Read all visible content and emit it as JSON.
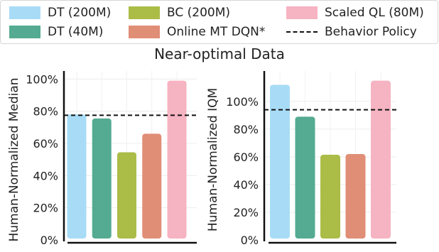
{
  "legend": {
    "items": [
      {
        "label": "DT (200M)",
        "color": "#a8dcf6",
        "style": "swatch"
      },
      {
        "label": "BC (200M)",
        "color": "#abbc47",
        "style": "swatch"
      },
      {
        "label": "Scaled QL (80M)",
        "color": "#f6b3c2",
        "style": "swatch"
      },
      {
        "label": "DT (40M)",
        "color": "#54ab91",
        "style": "swatch"
      },
      {
        "label": "Online MT DQN*",
        "color": "#e08e76",
        "style": "swatch"
      },
      {
        "label": "Behavior Policy",
        "color": "#111111",
        "style": "dashed"
      }
    ]
  },
  "title": "Near-optimal Data",
  "chart_data": [
    {
      "type": "bar",
      "ylabel": "Human-Normalized Median",
      "ylim": [
        0,
        105
      ],
      "yticks": [
        0,
        20,
        40,
        60,
        80,
        100
      ],
      "ytick_labels": [
        "0%",
        "20%",
        "40%",
        "60%",
        "80%",
        "100%"
      ],
      "categories": [
        "DT (200M)",
        "DT (40M)",
        "BC (200M)",
        "Online MT DQN*",
        "Scaled QL (80M)"
      ],
      "values": [
        78,
        75.5,
        54.5,
        66,
        99
      ],
      "colors": [
        "#a8dcf6",
        "#54ab91",
        "#abbc47",
        "#e08e76",
        "#f6b3c2"
      ],
      "reference_line": {
        "label": "Behavior Policy",
        "value": 77.5
      },
      "grid": true
    },
    {
      "type": "bar",
      "ylabel": "Human-Normalized IQM",
      "ylim": [
        0,
        122
      ],
      "yticks": [
        0,
        20,
        40,
        60,
        80,
        100
      ],
      "ytick_labels": [
        "0%",
        "20%",
        "40%",
        "60%",
        "80%",
        "100%"
      ],
      "categories": [
        "DT (200M)",
        "DT (40M)",
        "BC (200M)",
        "Online MT DQN*",
        "Scaled QL (80M)"
      ],
      "values": [
        112,
        89,
        61.5,
        62,
        115
      ],
      "colors": [
        "#a8dcf6",
        "#54ab91",
        "#abbc47",
        "#e08e76",
        "#f6b3c2"
      ],
      "reference_line": {
        "label": "Behavior Policy",
        "value": 94
      },
      "grid": true
    }
  ]
}
